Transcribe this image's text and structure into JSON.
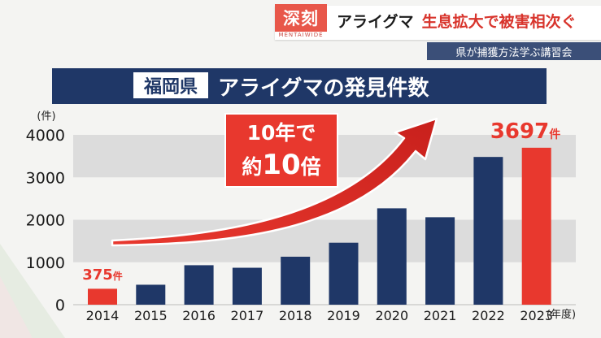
{
  "banner": {
    "tag": "深刻",
    "tag_sub": "MENTAIWIDE",
    "headline_part1": "アライグマ",
    "headline_part2": "生息拡大で被害相次ぐ",
    "subhead": "県が捕獲方法学ぶ講習会"
  },
  "title": {
    "boxed": "福岡県",
    "text": "アライグマの発見件数"
  },
  "colors": {
    "bar": "#1f3767",
    "highlight": "#e8382e",
    "band": "#dcdcdc"
  },
  "chart_data": {
    "type": "bar",
    "categories": [
      "2014",
      "2015",
      "2016",
      "2017",
      "2018",
      "2019",
      "2020",
      "2021",
      "2022",
      "2023"
    ],
    "values": [
      375,
      470,
      930,
      870,
      1130,
      1460,
      2270,
      2060,
      3480,
      3697
    ],
    "highlighted": [
      "2014",
      "2023"
    ],
    "ylim": [
      0,
      4000
    ],
    "yticks": [
      "0",
      "1000",
      "2000",
      "3000",
      "4000"
    ],
    "ylabel": "(件)",
    "xlabel": "(年度)",
    "labels": {
      "first_value": "375",
      "last_value": "3697",
      "unit": "件"
    },
    "annotation": {
      "line1": "10年で",
      "line2_prefix": "約",
      "line2_number": "10",
      "line2_suffix": "倍"
    }
  }
}
